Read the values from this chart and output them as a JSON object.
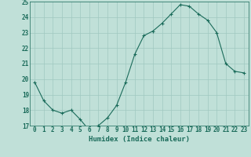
{
  "x": [
    0,
    1,
    2,
    3,
    4,
    5,
    6,
    7,
    8,
    9,
    10,
    11,
    12,
    13,
    14,
    15,
    16,
    17,
    18,
    19,
    20,
    21,
    22,
    23
  ],
  "y": [
    19.8,
    18.6,
    18.0,
    17.8,
    18.0,
    17.4,
    16.7,
    17.0,
    17.5,
    18.3,
    19.8,
    21.6,
    22.8,
    23.1,
    23.6,
    24.2,
    24.8,
    24.7,
    24.2,
    23.8,
    23.0,
    21.0,
    20.5,
    20.4
  ],
  "line_color": "#1a6b5a",
  "marker": "+",
  "marker_size": 3,
  "marker_linewidth": 0.8,
  "line_width": 0.8,
  "bg_color": "#c0e0d8",
  "grid_color": "#a0c8c0",
  "xlabel": "Humidex (Indice chaleur)",
  "ylim": [
    17,
    25
  ],
  "xlim": [
    -0.5,
    23.5
  ],
  "yticks": [
    17,
    18,
    19,
    20,
    21,
    22,
    23,
    24,
    25
  ],
  "xticks": [
    0,
    1,
    2,
    3,
    4,
    5,
    6,
    7,
    8,
    9,
    10,
    11,
    12,
    13,
    14,
    15,
    16,
    17,
    18,
    19,
    20,
    21,
    22,
    23
  ],
  "text_color": "#1a6b5a",
  "tick_fontsize": 5.5,
  "label_fontsize": 6.5
}
